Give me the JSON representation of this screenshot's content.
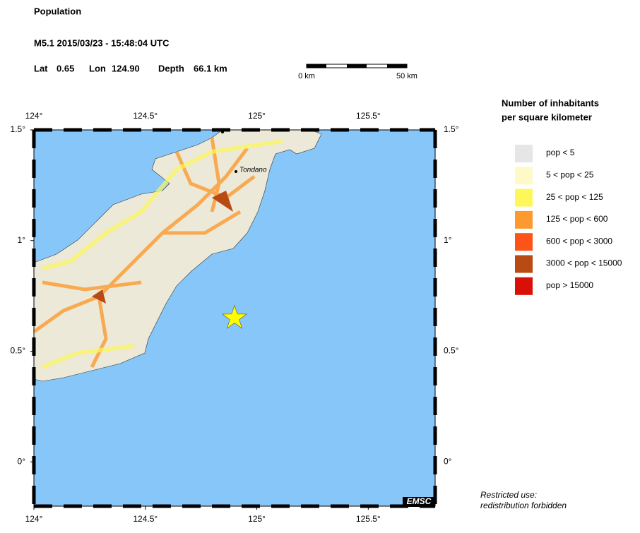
{
  "header": {
    "title": "Population",
    "event": "M5.1  2015/03/23 - 15:48:04 UTC",
    "lat_label": "Lat",
    "lat": "0.65",
    "lon_label": "Lon",
    "lon": "124.90",
    "depth_label": "Depth",
    "depth": "66.1 km"
  },
  "scale_bar": {
    "start": "0 km",
    "end": "50 km"
  },
  "map": {
    "xlim": [
      124,
      125.8
    ],
    "ylim": [
      -0.2,
      1.5
    ],
    "xticks": [
      {
        "value": 124,
        "label": "124°"
      },
      {
        "value": 124.5,
        "label": "124.5°"
      },
      {
        "value": 125,
        "label": "125°"
      },
      {
        "value": 125.5,
        "label": "125.5°"
      }
    ],
    "yticks": [
      {
        "value": 0,
        "label": "0°"
      },
      {
        "value": 0.5,
        "label": "0.5°"
      },
      {
        "value": 1,
        "label": "1°"
      },
      {
        "value": 1.5,
        "label": "1.5°"
      }
    ],
    "city": "Tondano",
    "credit": "EMSC",
    "ocean_color": "#87c6f8",
    "epicenter_color": "#ffff00"
  },
  "legend": {
    "title_line1": "Number of inhabitants",
    "title_line2": "per square kilometer",
    "items": [
      {
        "label": "pop < 5",
        "color": "#e6e6e6"
      },
      {
        "label": "5 < pop < 25",
        "color": "#fdfac8"
      },
      {
        "label": "25 < pop < 125",
        "color": "#fdf75a"
      },
      {
        "label": "125 < pop < 600",
        "color": "#fc9a30"
      },
      {
        "label": "600 < pop < 3000",
        "color": "#fc5418"
      },
      {
        "label": "3000 < pop < 15000",
        "color": "#b84a14"
      },
      {
        "label": "pop > 15000",
        "color": "#d81008"
      }
    ]
  },
  "notice": {
    "line1": "Restricted use:",
    "line2": "redistribution forbidden"
  }
}
